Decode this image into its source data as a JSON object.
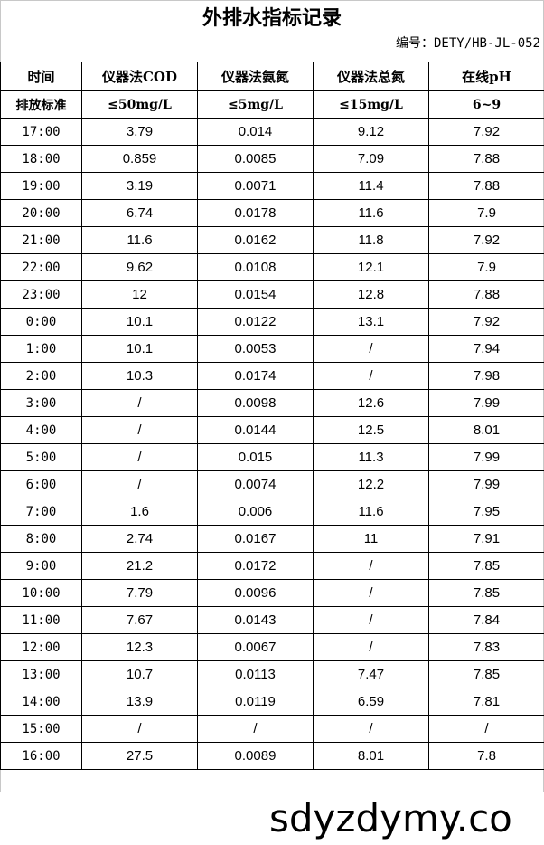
{
  "title": "外排水指标记录",
  "doc_code": "编号：DETY/HB-JL-052",
  "headers": [
    "时间",
    "仪器法COD",
    "仪器法氨氮",
    "仪器法总氮",
    "在线pH"
  ],
  "standard": [
    "排放标准",
    "≤50mg/L",
    "≤5mg/L",
    "≤15mg/L",
    "6~9"
  ],
  "rows": [
    [
      "17:00",
      "3.79",
      "0.014",
      "9.12",
      "7.92"
    ],
    [
      "18:00",
      "0.859",
      "0.0085",
      "7.09",
      "7.88"
    ],
    [
      "19:00",
      "3.19",
      "0.0071",
      "11.4",
      "7.88"
    ],
    [
      "20:00",
      "6.74",
      "0.0178",
      "11.6",
      "7.9"
    ],
    [
      "21:00",
      "11.6",
      "0.0162",
      "11.8",
      "7.92"
    ],
    [
      "22:00",
      "9.62",
      "0.0108",
      "12.1",
      "7.9"
    ],
    [
      "23:00",
      "12",
      "0.0154",
      "12.8",
      "7.88"
    ],
    [
      "0:00",
      "10.1",
      "0.0122",
      "13.1",
      "7.92"
    ],
    [
      "1:00",
      "10.1",
      "0.0053",
      "/",
      "7.94"
    ],
    [
      "2:00",
      "10.3",
      "0.0174",
      "/",
      "7.98"
    ],
    [
      "3:00",
      "/",
      "0.0098",
      "12.6",
      "7.99"
    ],
    [
      "4:00",
      "/",
      "0.0144",
      "12.5",
      "8.01"
    ],
    [
      "5:00",
      "/",
      "0.015",
      "11.3",
      "7.99"
    ],
    [
      "6:00",
      "/",
      "0.0074",
      "12.2",
      "7.99"
    ],
    [
      "7:00",
      "1.6",
      "0.006",
      "11.6",
      "7.95"
    ],
    [
      "8:00",
      "2.74",
      "0.0167",
      "11",
      "7.91"
    ],
    [
      "9:00",
      "21.2",
      "0.0172",
      "/",
      "7.85"
    ],
    [
      "10:00",
      "7.79",
      "0.0096",
      "/",
      "7.85"
    ],
    [
      "11:00",
      "7.67",
      "0.0143",
      "/",
      "7.84"
    ],
    [
      "12:00",
      "12.3",
      "0.0067",
      "/",
      "7.83"
    ],
    [
      "13:00",
      "10.7",
      "0.0113",
      "7.47",
      "7.85"
    ],
    [
      "14:00",
      "13.9",
      "0.0119",
      "6.59",
      "7.81"
    ],
    [
      "15:00",
      "/",
      "/",
      "/",
      "/"
    ],
    [
      "16:00",
      "27.5",
      "0.0089",
      "8.01",
      "7.8"
    ]
  ],
  "watermark": "sdyzdymy.co"
}
